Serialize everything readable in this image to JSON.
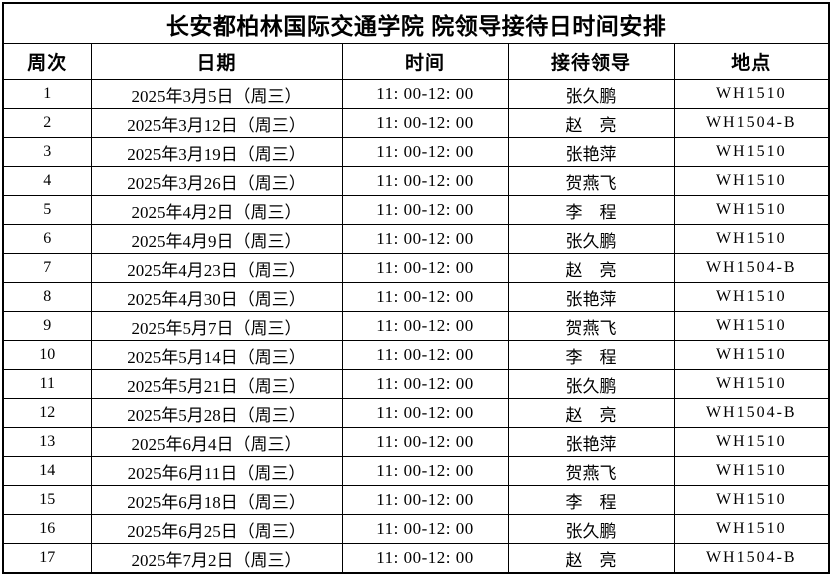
{
  "table": {
    "title": "长安都柏林国际交通学院 院领导接待日时间安排",
    "columns": [
      "周次",
      "日期",
      "时间",
      "接待领导",
      "地点"
    ],
    "rows": [
      {
        "week": "1",
        "date": "2025年3月5日（周三）",
        "time": "11: 00-12: 00",
        "leader": "张久鹏",
        "location": "WH1510"
      },
      {
        "week": "2",
        "date": "2025年3月12日（周三）",
        "time": "11: 00-12: 00",
        "leader": "赵　亮",
        "location": "WH1504-B"
      },
      {
        "week": "3",
        "date": "2025年3月19日（周三）",
        "time": "11: 00-12: 00",
        "leader": "张艳萍",
        "location": "WH1510"
      },
      {
        "week": "4",
        "date": "2025年3月26日（周三）",
        "time": "11: 00-12: 00",
        "leader": "贺燕飞",
        "location": "WH1510"
      },
      {
        "week": "5",
        "date": "2025年4月2日（周三）",
        "time": "11: 00-12: 00",
        "leader": "李　程",
        "location": "WH1510"
      },
      {
        "week": "6",
        "date": "2025年4月9日（周三）",
        "time": "11: 00-12: 00",
        "leader": "张久鹏",
        "location": "WH1510"
      },
      {
        "week": "7",
        "date": "2025年4月23日（周三）",
        "time": "11: 00-12: 00",
        "leader": "赵　亮",
        "location": "WH1504-B"
      },
      {
        "week": "8",
        "date": "2025年4月30日（周三）",
        "time": "11: 00-12: 00",
        "leader": "张艳萍",
        "location": "WH1510"
      },
      {
        "week": "9",
        "date": "2025年5月7日（周三）",
        "time": "11: 00-12: 00",
        "leader": "贺燕飞",
        "location": "WH1510"
      },
      {
        "week": "10",
        "date": "2025年5月14日（周三）",
        "time": "11: 00-12: 00",
        "leader": "李　程",
        "location": "WH1510"
      },
      {
        "week": "11",
        "date": "2025年5月21日（周三）",
        "time": "11: 00-12: 00",
        "leader": "张久鹏",
        "location": "WH1510"
      },
      {
        "week": "12",
        "date": "2025年5月28日（周三）",
        "time": "11: 00-12: 00",
        "leader": "赵　亮",
        "location": "WH1504-B"
      },
      {
        "week": "13",
        "date": "2025年6月4日（周三）",
        "time": "11: 00-12: 00",
        "leader": "张艳萍",
        "location": "WH1510"
      },
      {
        "week": "14",
        "date": "2025年6月11日（周三）",
        "time": "11: 00-12: 00",
        "leader": "贺燕飞",
        "location": "WH1510"
      },
      {
        "week": "15",
        "date": "2025年6月18日（周三）",
        "time": "11: 00-12: 00",
        "leader": "李　程",
        "location": "WH1510"
      },
      {
        "week": "16",
        "date": "2025年6月25日（周三）",
        "time": "11: 00-12: 00",
        "leader": "张久鹏",
        "location": "WH1510"
      },
      {
        "week": "17",
        "date": "2025年7月2日（周三）",
        "time": "11: 00-12: 00",
        "leader": "赵　亮",
        "location": "WH1504-B"
      }
    ]
  }
}
